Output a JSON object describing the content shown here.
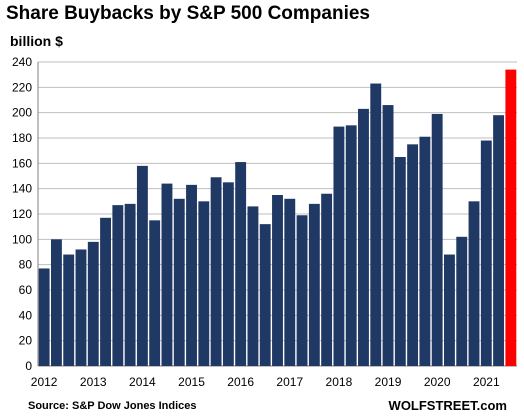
{
  "header": {
    "title": "Share Buybacks by S&P 500 Companies",
    "unit_label": "billion $"
  },
  "footer": {
    "source": "Source: S&P Dow Jones Indices",
    "brand": "WOLFSTREET.com"
  },
  "colors": {
    "bar": "#1f3864",
    "highlight": "#ff0000",
    "grid": "#bfbfbf"
  },
  "chart_data": {
    "type": "bar",
    "title": "Share Buybacks by S&P 500 Companies",
    "ylabel": "billion $",
    "xlabel": "",
    "ylim": [
      0,
      240
    ],
    "y_ticks": [
      0,
      20,
      40,
      60,
      80,
      100,
      120,
      140,
      160,
      180,
      200,
      220,
      240
    ],
    "x_year_labels": [
      "2012",
      "2013",
      "2014",
      "2015",
      "2016",
      "2017",
      "2018",
      "2019",
      "2020",
      "2021"
    ],
    "grid": true,
    "categories": [
      "2012 Q1",
      "2012 Q2",
      "2012 Q3",
      "2012 Q4",
      "2013 Q1",
      "2013 Q2",
      "2013 Q3",
      "2013 Q4",
      "2014 Q1",
      "2014 Q2",
      "2014 Q3",
      "2014 Q4",
      "2015 Q1",
      "2015 Q2",
      "2015 Q3",
      "2015 Q4",
      "2016 Q1",
      "2016 Q2",
      "2016 Q3",
      "2016 Q4",
      "2017 Q1",
      "2017 Q2",
      "2017 Q3",
      "2017 Q4",
      "2018 Q1",
      "2018 Q2",
      "2018 Q3",
      "2018 Q4",
      "2019 Q1",
      "2019 Q2",
      "2019 Q3",
      "2019 Q4",
      "2020 Q1",
      "2020 Q2",
      "2020 Q3",
      "2020 Q4",
      "2021 Q1",
      "2021 Q2",
      "2021 Q3"
    ],
    "values": [
      77,
      100,
      88,
      92,
      98,
      117,
      127,
      128,
      158,
      115,
      144,
      132,
      143,
      130,
      149,
      145,
      161,
      126,
      112,
      135,
      132,
      119,
      128,
      136,
      189,
      190,
      203,
      223,
      206,
      165,
      175,
      181,
      199,
      88,
      102,
      130,
      178,
      198,
      234
    ],
    "highlight_index": 38
  }
}
